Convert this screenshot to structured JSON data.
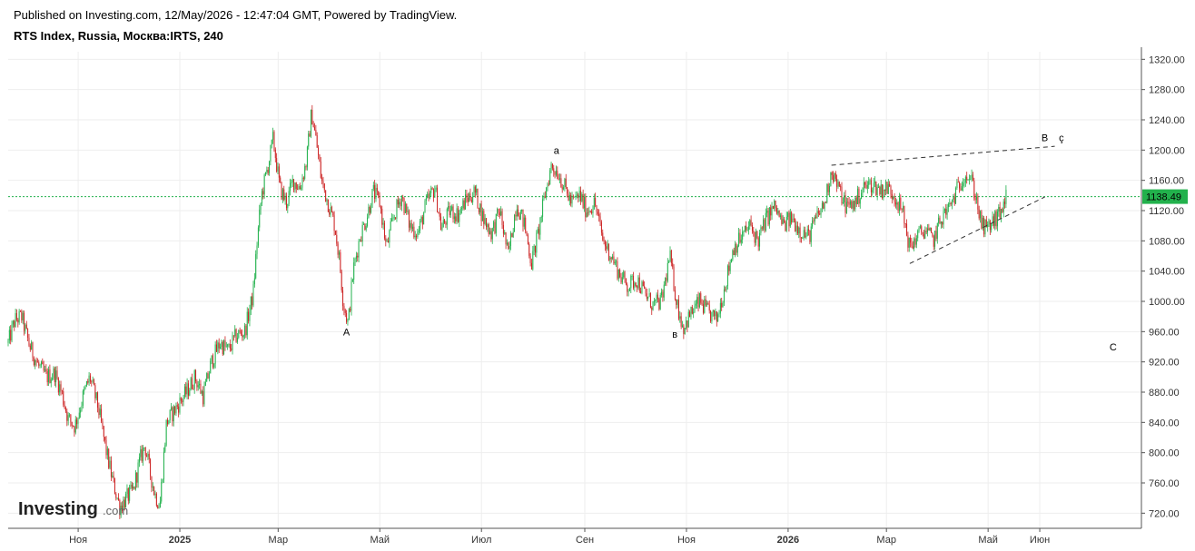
{
  "header": {
    "published": "Published on Investing.com, 12/May/2026 - 12:47:04 GMT, Powered by TradingView.",
    "title": "RTS Index, Russia, Москва:IRTS, 240"
  },
  "logo": {
    "main": "Investing",
    "suffix": ".com"
  },
  "colors": {
    "up": "#22b14c",
    "down": "#cc2222",
    "last_price_line": "#22b14c",
    "trendline": "#333333",
    "grid": "#eeeeee"
  },
  "chart_data": {
    "type": "candlestick",
    "title": "RTS Index, Russia, Москва:IRTS, 240",
    "ylim": [
      700,
      1330
    ],
    "y_ticks": [
      "720.00",
      "760.00",
      "800.00",
      "840.00",
      "880.00",
      "920.00",
      "960.00",
      "1000.00",
      "1040.00",
      "1080.00",
      "1120.00",
      "1160.00",
      "1200.00",
      "1240.00",
      "1280.00",
      "1320.00"
    ],
    "x_ticks": [
      {
        "label": "Ноя",
        "date": "2024-11-01",
        "bold": false
      },
      {
        "label": "2025",
        "date": "2025-01-01",
        "bold": true
      },
      {
        "label": "Мар",
        "date": "2025-03-01",
        "bold": false
      },
      {
        "label": "Май",
        "date": "2025-05-01",
        "bold": false
      },
      {
        "label": "Июл",
        "date": "2025-07-01",
        "bold": false
      },
      {
        "label": "Сен",
        "date": "2025-09-01",
        "bold": false
      },
      {
        "label": "Ноя",
        "date": "2025-11-01",
        "bold": false
      },
      {
        "label": "2026",
        "date": "2026-01-01",
        "bold": true
      },
      {
        "label": "Мар",
        "date": "2026-03-01",
        "bold": false
      },
      {
        "label": "Май",
        "date": "2026-05-01",
        "bold": false
      },
      {
        "label": "Июн",
        "date": "2026-06-01",
        "bold": false
      }
    ],
    "x_range": [
      "2024-09-20",
      "2026-08-01"
    ],
    "last_price": 1138.49,
    "last_price_label": "1138.49",
    "price_path": [
      [
        "2024-09-20",
        945
      ],
      [
        "2024-09-24",
        975
      ],
      [
        "2024-09-28",
        980
      ],
      [
        "2024-10-03",
        940
      ],
      [
        "2024-10-08",
        915
      ],
      [
        "2024-10-13",
        900
      ],
      [
        "2024-10-18",
        905
      ],
      [
        "2024-10-22",
        880
      ],
      [
        "2024-10-26",
        845
      ],
      [
        "2024-10-30",
        835
      ],
      [
        "2024-11-04",
        875
      ],
      [
        "2024-11-08",
        900
      ],
      [
        "2024-11-13",
        860
      ],
      [
        "2024-11-18",
        800
      ],
      [
        "2024-11-22",
        760
      ],
      [
        "2024-11-26",
        728
      ],
      [
        "2024-11-30",
        740
      ],
      [
        "2024-12-04",
        750
      ],
      [
        "2024-12-08",
        790
      ],
      [
        "2024-12-11",
        810
      ],
      [
        "2024-12-14",
        775
      ],
      [
        "2024-12-17",
        745
      ],
      [
        "2024-12-20",
        730
      ],
      [
        "2024-12-24",
        840
      ],
      [
        "2024-12-30",
        860
      ],
      [
        "2025-01-05",
        880
      ],
      [
        "2025-01-10",
        900
      ],
      [
        "2025-01-15",
        875
      ],
      [
        "2025-01-20",
        920
      ],
      [
        "2025-01-25",
        945
      ],
      [
        "2025-01-30",
        935
      ],
      [
        "2025-02-04",
        955
      ],
      [
        "2025-02-09",
        960
      ],
      [
        "2025-02-14",
        1010
      ],
      [
        "2025-02-16",
        1070
      ],
      [
        "2025-02-19",
        1140
      ],
      [
        "2025-02-23",
        1180
      ],
      [
        "2025-02-26",
        1215
      ],
      [
        "2025-03-02",
        1150
      ],
      [
        "2025-03-06",
        1130
      ],
      [
        "2025-03-10",
        1160
      ],
      [
        "2025-03-14",
        1150
      ],
      [
        "2025-03-18",
        1185
      ],
      [
        "2025-03-21",
        1250
      ],
      [
        "2025-03-24",
        1210
      ],
      [
        "2025-03-27",
        1160
      ],
      [
        "2025-03-31",
        1130
      ],
      [
        "2025-04-04",
        1100
      ],
      [
        "2025-04-07",
        1050
      ],
      [
        "2025-04-09",
        1000
      ],
      [
        "2025-04-12",
        970
      ],
      [
        "2025-04-15",
        1040
      ],
      [
        "2025-04-19",
        1085
      ],
      [
        "2025-04-23",
        1110
      ],
      [
        "2025-04-27",
        1145
      ],
      [
        "2025-05-01",
        1130
      ],
      [
        "2025-05-05",
        1070
      ],
      [
        "2025-05-09",
        1110
      ],
      [
        "2025-05-14",
        1140
      ],
      [
        "2025-05-19",
        1100
      ],
      [
        "2025-05-24",
        1090
      ],
      [
        "2025-05-29",
        1130
      ],
      [
        "2025-06-03",
        1150
      ],
      [
        "2025-06-07",
        1095
      ],
      [
        "2025-06-12",
        1120
      ],
      [
        "2025-06-17",
        1115
      ],
      [
        "2025-06-22",
        1135
      ],
      [
        "2025-06-27",
        1145
      ],
      [
        "2025-07-02",
        1110
      ],
      [
        "2025-07-07",
        1090
      ],
      [
        "2025-07-12",
        1120
      ],
      [
        "2025-07-17",
        1060
      ],
      [
        "2025-07-22",
        1130
      ],
      [
        "2025-07-27",
        1100
      ],
      [
        "2025-07-31",
        1050
      ],
      [
        "2025-08-04",
        1090
      ],
      [
        "2025-08-08",
        1140
      ],
      [
        "2025-08-12",
        1180
      ],
      [
        "2025-08-16",
        1170
      ],
      [
        "2025-08-20",
        1150
      ],
      [
        "2025-08-24",
        1130
      ],
      [
        "2025-08-29",
        1140
      ],
      [
        "2025-09-02",
        1120
      ],
      [
        "2025-09-07",
        1130
      ],
      [
        "2025-09-12",
        1080
      ],
      [
        "2025-09-17",
        1060
      ],
      [
        "2025-09-22",
        1035
      ],
      [
        "2025-09-27",
        1020
      ],
      [
        "2025-10-02",
        1030
      ],
      [
        "2025-10-07",
        1010
      ],
      [
        "2025-10-12",
        995
      ],
      [
        "2025-10-17",
        1000
      ],
      [
        "2025-10-22",
        1060
      ],
      [
        "2025-10-26",
        1000
      ],
      [
        "2025-10-30",
        965
      ],
      [
        "2025-11-04",
        985
      ],
      [
        "2025-11-09",
        1000
      ],
      [
        "2025-11-14",
        985
      ],
      [
        "2025-11-19",
        975
      ],
      [
        "2025-11-24",
        1020
      ],
      [
        "2025-11-29",
        1070
      ],
      [
        "2025-12-04",
        1085
      ],
      [
        "2025-12-09",
        1100
      ],
      [
        "2025-12-14",
        1080
      ],
      [
        "2025-12-19",
        1110
      ],
      [
        "2025-12-24",
        1125
      ],
      [
        "2025-12-29",
        1100
      ],
      [
        "2026-01-03",
        1110
      ],
      [
        "2026-01-08",
        1095
      ],
      [
        "2026-01-13",
        1085
      ],
      [
        "2026-01-18",
        1110
      ],
      [
        "2026-01-23",
        1130
      ],
      [
        "2026-01-27",
        1175
      ],
      [
        "2026-01-31",
        1150
      ],
      [
        "2026-02-05",
        1125
      ],
      [
        "2026-02-10",
        1130
      ],
      [
        "2026-02-15",
        1150
      ],
      [
        "2026-02-20",
        1155
      ],
      [
        "2026-02-25",
        1148
      ],
      [
        "2026-03-02",
        1150
      ],
      [
        "2026-03-06",
        1140
      ],
      [
        "2026-03-11",
        1115
      ],
      [
        "2026-03-15",
        1070
      ],
      [
        "2026-03-19",
        1085
      ],
      [
        "2026-03-24",
        1095
      ],
      [
        "2026-03-29",
        1080
      ],
      [
        "2026-04-03",
        1110
      ],
      [
        "2026-04-08",
        1125
      ],
      [
        "2026-04-13",
        1150
      ],
      [
        "2026-04-17",
        1170
      ],
      [
        "2026-04-21",
        1160
      ],
      [
        "2026-04-24",
        1135
      ],
      [
        "2026-04-27",
        1100
      ],
      [
        "2026-04-30",
        1095
      ],
      [
        "2026-05-04",
        1105
      ],
      [
        "2026-05-08",
        1115
      ],
      [
        "2026-05-12",
        1138
      ]
    ],
    "trendlines": [
      {
        "from": [
          "2026-01-27",
          1180
        ],
        "to": [
          "2026-06-10",
          1205
        ]
      },
      {
        "from": [
          "2026-03-15",
          1050
        ],
        "to": [
          "2026-06-04",
          1138
        ]
      }
    ],
    "annotations": [
      {
        "text": "A",
        "date": "2025-04-11",
        "price": 955
      },
      {
        "text": "а",
        "date": "2025-08-15",
        "price": 1195
      },
      {
        "text": "в",
        "date": "2025-10-25",
        "price": 952
      },
      {
        "text": "B",
        "date": "2026-06-04",
        "price": 1212
      },
      {
        "text": "ç",
        "date": "2026-06-14",
        "price": 1212
      },
      {
        "text": "C",
        "date": "2026-07-15",
        "price": 935
      }
    ]
  }
}
